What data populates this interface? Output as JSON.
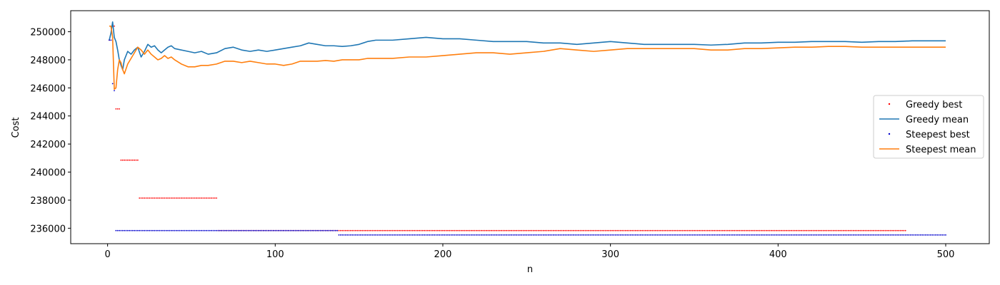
{
  "chart_data": {
    "type": "line",
    "title": "",
    "xlabel": "n",
    "ylabel": "Cost",
    "xlim": [
      -22,
      526
    ],
    "ylim": [
      234900,
      251500
    ],
    "xticks": [
      0,
      100,
      200,
      300,
      400,
      500
    ],
    "yticks": [
      236000,
      238000,
      240000,
      242000,
      244000,
      246000,
      248000,
      250000
    ],
    "grid": false,
    "legend_position": "center-right",
    "series": [
      {
        "name": "Greedy best",
        "kind": "scatter",
        "color": "#ff0000",
        "steps": [
          {
            "from": 1,
            "to": 2,
            "y": 249400
          },
          {
            "from": 3,
            "to": 4,
            "y": 250400
          },
          {
            "from": 5,
            "to": 7,
            "y": 244500
          },
          {
            "from": 8,
            "to": 18,
            "y": 240850
          },
          {
            "from": 19,
            "to": 65,
            "y": 238150
          },
          {
            "from": 66,
            "to": 476,
            "y": 235830
          }
        ]
      },
      {
        "name": "Greedy mean",
        "kind": "line",
        "color": "#1f77b4",
        "points": [
          [
            1,
            249400
          ],
          [
            2,
            249900
          ],
          [
            3,
            250700
          ],
          [
            4,
            249600
          ],
          [
            5,
            249300
          ],
          [
            6,
            248700
          ],
          [
            7,
            248000
          ],
          [
            8,
            247600
          ],
          [
            9,
            247300
          ],
          [
            10,
            248000
          ],
          [
            12,
            248600
          ],
          [
            14,
            248400
          ],
          [
            16,
            248700
          ],
          [
            18,
            248900
          ],
          [
            20,
            248200
          ],
          [
            22,
            248600
          ],
          [
            24,
            249100
          ],
          [
            26,
            248900
          ],
          [
            28,
            249000
          ],
          [
            30,
            248700
          ],
          [
            32,
            248500
          ],
          [
            34,
            248700
          ],
          [
            36,
            248900
          ],
          [
            38,
            249000
          ],
          [
            40,
            248800
          ],
          [
            44,
            248700
          ],
          [
            48,
            248600
          ],
          [
            52,
            248500
          ],
          [
            56,
            248600
          ],
          [
            60,
            248400
          ],
          [
            65,
            248500
          ],
          [
            70,
            248800
          ],
          [
            75,
            248900
          ],
          [
            80,
            248700
          ],
          [
            85,
            248600
          ],
          [
            90,
            248700
          ],
          [
            95,
            248600
          ],
          [
            100,
            248700
          ],
          [
            105,
            248800
          ],
          [
            110,
            248900
          ],
          [
            115,
            249000
          ],
          [
            120,
            249200
          ],
          [
            125,
            249100
          ],
          [
            130,
            249000
          ],
          [
            135,
            249000
          ],
          [
            140,
            248950
          ],
          [
            145,
            249000
          ],
          [
            150,
            249100
          ],
          [
            155,
            249300
          ],
          [
            160,
            249400
          ],
          [
            170,
            249400
          ],
          [
            180,
            249500
          ],
          [
            190,
            249600
          ],
          [
            200,
            249500
          ],
          [
            210,
            249500
          ],
          [
            220,
            249400
          ],
          [
            230,
            249300
          ],
          [
            240,
            249300
          ],
          [
            250,
            249300
          ],
          [
            260,
            249200
          ],
          [
            270,
            249200
          ],
          [
            280,
            249100
          ],
          [
            290,
            249200
          ],
          [
            300,
            249300
          ],
          [
            310,
            249200
          ],
          [
            320,
            249100
          ],
          [
            330,
            249100
          ],
          [
            340,
            249100
          ],
          [
            350,
            249100
          ],
          [
            360,
            249050
          ],
          [
            370,
            249100
          ],
          [
            380,
            249200
          ],
          [
            390,
            249200
          ],
          [
            400,
            249250
          ],
          [
            410,
            249250
          ],
          [
            420,
            249300
          ],
          [
            430,
            249300
          ],
          [
            440,
            249300
          ],
          [
            450,
            249250
          ],
          [
            460,
            249300
          ],
          [
            470,
            249300
          ],
          [
            480,
            249350
          ],
          [
            490,
            249350
          ],
          [
            500,
            249350
          ]
        ]
      },
      {
        "name": "Steepest best",
        "kind": "scatter",
        "color": "#0000cd",
        "steps": [
          {
            "from": 1,
            "to": 2,
            "y": 249400
          },
          {
            "from": 3,
            "to": 3,
            "y": 246300
          },
          {
            "from": 4,
            "to": 4,
            "y": 245800
          },
          {
            "from": 5,
            "to": 137,
            "y": 235830
          },
          {
            "from": 138,
            "to": 500,
            "y": 235520
          }
        ]
      },
      {
        "name": "Steepest mean",
        "kind": "line",
        "color": "#ff7f0e",
        "points": [
          [
            1,
            250400
          ],
          [
            2,
            250400
          ],
          [
            3,
            249600
          ],
          [
            4,
            245900
          ],
          [
            5,
            246000
          ],
          [
            6,
            247300
          ],
          [
            7,
            248000
          ],
          [
            8,
            247800
          ],
          [
            9,
            247300
          ],
          [
            10,
            247000
          ],
          [
            12,
            247700
          ],
          [
            14,
            248100
          ],
          [
            16,
            248500
          ],
          [
            18,
            248900
          ],
          [
            20,
            248700
          ],
          [
            22,
            248400
          ],
          [
            24,
            248700
          ],
          [
            26,
            248400
          ],
          [
            28,
            248200
          ],
          [
            30,
            248000
          ],
          [
            32,
            248100
          ],
          [
            34,
            248300
          ],
          [
            36,
            248100
          ],
          [
            38,
            248200
          ],
          [
            40,
            248000
          ],
          [
            44,
            247700
          ],
          [
            48,
            247500
          ],
          [
            52,
            247500
          ],
          [
            56,
            247600
          ],
          [
            60,
            247600
          ],
          [
            65,
            247700
          ],
          [
            70,
            247900
          ],
          [
            75,
            247900
          ],
          [
            80,
            247800
          ],
          [
            85,
            247900
          ],
          [
            90,
            247800
          ],
          [
            95,
            247700
          ],
          [
            100,
            247700
          ],
          [
            105,
            247600
          ],
          [
            110,
            247700
          ],
          [
            115,
            247900
          ],
          [
            120,
            247900
          ],
          [
            125,
            247900
          ],
          [
            130,
            247950
          ],
          [
            135,
            247900
          ],
          [
            140,
            248000
          ],
          [
            145,
            248000
          ],
          [
            150,
            248000
          ],
          [
            155,
            248100
          ],
          [
            160,
            248100
          ],
          [
            170,
            248100
          ],
          [
            180,
            248200
          ],
          [
            190,
            248200
          ],
          [
            200,
            248300
          ],
          [
            210,
            248400
          ],
          [
            220,
            248500
          ],
          [
            230,
            248500
          ],
          [
            240,
            248400
          ],
          [
            250,
            248500
          ],
          [
            260,
            248600
          ],
          [
            270,
            248800
          ],
          [
            280,
            248700
          ],
          [
            290,
            248600
          ],
          [
            300,
            248700
          ],
          [
            310,
            248800
          ],
          [
            320,
            248800
          ],
          [
            330,
            248800
          ],
          [
            340,
            248800
          ],
          [
            350,
            248800
          ],
          [
            360,
            248700
          ],
          [
            370,
            248700
          ],
          [
            380,
            248800
          ],
          [
            390,
            248800
          ],
          [
            400,
            248850
          ],
          [
            410,
            248900
          ],
          [
            420,
            248900
          ],
          [
            430,
            248950
          ],
          [
            440,
            248950
          ],
          [
            450,
            248900
          ],
          [
            460,
            248900
          ],
          [
            470,
            248900
          ],
          [
            480,
            248900
          ],
          [
            490,
            248900
          ],
          [
            500,
            248900
          ]
        ]
      }
    ]
  }
}
